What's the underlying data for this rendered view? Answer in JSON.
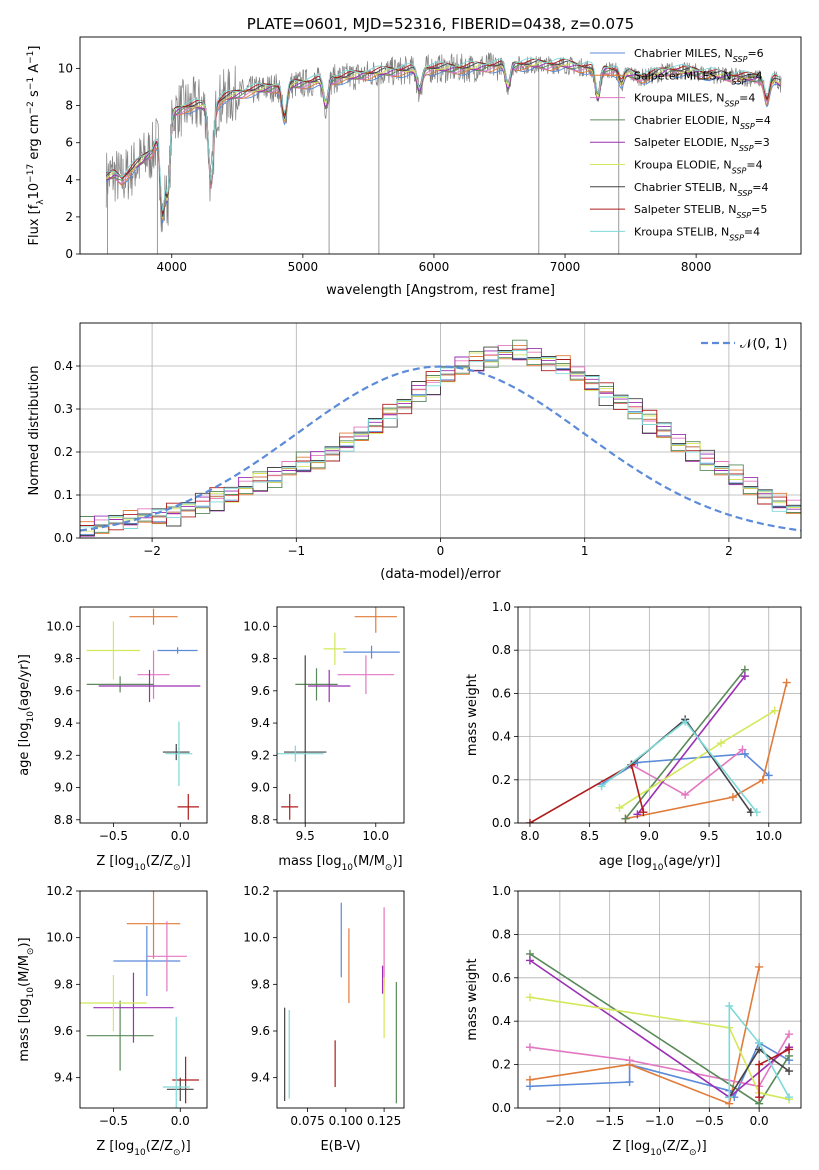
{
  "colors": {
    "chabrier_miles": "#5b8bd9",
    "salpeter_miles": "#e07b39",
    "kroupa_miles": "#e377c2",
    "chabrier_elodie": "#5a8a5a",
    "salpeter_elodie": "#9b30b5",
    "kroupa_elodie": "#d4e85a",
    "chabrier_stelib": "#444444",
    "salpeter_stelib": "#b01c1c",
    "kroupa_stelib": "#7fd8d8",
    "data": "#808080",
    "normal": "#5b8bd9"
  },
  "chart_data": [
    {
      "id": "spectrum",
      "type": "line",
      "title": "PLATE=0601, MJD=52316, FIBERID=0438, z=0.075",
      "xlabel": "wavelength [Angstrom, rest frame]",
      "ylabel": "Flux [f_λ10^-17 erg cm^-2 s^-1 A^-1]",
      "xlim": [
        3300,
        8800
      ],
      "ylim": [
        0,
        11.7
      ],
      "xticks": [
        4000,
        5000,
        6000,
        7000,
        8000
      ],
      "yticks": [
        0,
        2,
        4,
        6,
        8,
        10
      ],
      "legend_position": "right",
      "legend": [
        {
          "key": "chabrier_miles",
          "label": "Chabrier MILES, N",
          "sub": "SSP",
          "val": "=6"
        },
        {
          "key": "salpeter_miles",
          "label": "Salpeter MILES, N",
          "sub": "SSP",
          "val": "=4"
        },
        {
          "key": "kroupa_miles",
          "label": "Kroupa MILES, N",
          "sub": "SSP",
          "val": "=4"
        },
        {
          "key": "chabrier_elodie",
          "label": "Chabrier ELODIE, N",
          "sub": "SSP",
          "val": "=4"
        },
        {
          "key": "salpeter_elodie",
          "label": "Salpeter ELODIE, N",
          "sub": "SSP",
          "val": "=3"
        },
        {
          "key": "kroupa_elodie",
          "label": "Kroupa ELODIE, N",
          "sub": "SSP",
          "val": "=4"
        },
        {
          "key": "chabrier_stelib",
          "label": "Chabrier STELIB, N",
          "sub": "SSP",
          "val": "=4"
        },
        {
          "key": "salpeter_stelib",
          "label": "Salpeter STELIB, N",
          "sub": "SSP",
          "val": "=5"
        },
        {
          "key": "kroupa_stelib",
          "label": "Kroupa STELIB, N",
          "sub": "SSP",
          "val": "=4"
        }
      ],
      "continuum": {
        "x": [
          3500,
          3560,
          3620,
          3700,
          3800,
          3850,
          3900,
          3950,
          4000,
          4100,
          4200,
          4300,
          4400,
          4600,
          4800,
          5000,
          5200,
          5400,
          5600,
          5800,
          6000,
          6200,
          6400,
          6600,
          6800,
          7000,
          7200,
          7400,
          7600,
          7800,
          8000,
          8200,
          8400,
          8600,
          8700
        ],
        "y": [
          4.1,
          4.3,
          4.0,
          4.6,
          5.2,
          5.5,
          6.4,
          5.2,
          7.6,
          7.9,
          8.0,
          7.9,
          8.4,
          8.8,
          9.0,
          9.2,
          9.4,
          9.6,
          9.8,
          9.9,
          10.0,
          10.0,
          10.1,
          10.2,
          10.2,
          10.2,
          10.0,
          9.9,
          9.5,
          9.9,
          9.8,
          9.6,
          9.5,
          9.4,
          8.9
        ]
      },
      "dips": [
        {
          "x": 3930,
          "y": 2.0
        },
        {
          "x": 3970,
          "y": 3.0
        },
        {
          "x": 4300,
          "y": 3.8
        },
        {
          "x": 4860,
          "y": 7.3
        },
        {
          "x": 5175,
          "y": 8.0
        },
        {
          "x": 5890,
          "y": 8.8
        },
        {
          "x": 6565,
          "y": 9.0
        },
        {
          "x": 7250,
          "y": 8.4
        },
        {
          "x": 7430,
          "y": 9.2
        },
        {
          "x": 8540,
          "y": 8.3
        }
      ],
      "spikes_down": [
        {
          "x": 3510,
          "y": 0
        },
        {
          "x": 3890,
          "y": 0
        },
        {
          "x": 5200,
          "y": 0
        },
        {
          "x": 5580,
          "y": 0
        },
        {
          "x": 6800,
          "y": 0
        },
        {
          "x": 7410,
          "y": 0
        }
      ]
    },
    {
      "id": "residuals",
      "type": "bar",
      "xlabel": "(data-model)/error",
      "ylabel": "Normed distribution",
      "xlim": [
        -2.5,
        2.5
      ],
      "ylim": [
        0,
        0.5
      ],
      "xticks": [
        -2,
        -1,
        0,
        1,
        2
      ],
      "yticks": [
        0.0,
        0.1,
        0.2,
        0.3,
        0.4
      ],
      "grid": true,
      "legend_position": "upper right",
      "legend_label": "𝒩(0, 1)",
      "bin_width": 0.1,
      "bins_start": -2.5,
      "values": [
        0.02,
        0.03,
        0.04,
        0.04,
        0.05,
        0.05,
        0.06,
        0.07,
        0.08,
        0.09,
        0.1,
        0.12,
        0.13,
        0.14,
        0.16,
        0.17,
        0.18,
        0.2,
        0.22,
        0.24,
        0.26,
        0.29,
        0.31,
        0.34,
        0.36,
        0.38,
        0.4,
        0.41,
        0.42,
        0.43,
        0.43,
        0.42,
        0.41,
        0.4,
        0.38,
        0.36,
        0.34,
        0.32,
        0.3,
        0.27,
        0.25,
        0.22,
        0.2,
        0.18,
        0.16,
        0.14,
        0.12,
        0.1,
        0.08,
        0.07
      ],
      "series_offsets": [
        0.0,
        0.012,
        -0.01,
        0.018,
        -0.015,
        0.008,
        -0.02,
        0.015,
        -0.006
      ],
      "normal": {
        "mu": 0,
        "sigma": 1
      }
    },
    {
      "id": "age_vs_z",
      "type": "scatter",
      "xlabel": "Z [log10(Z/Z☉)]",
      "ylabel": "age  [log10(age/yr)]",
      "xlim": [
        -0.75,
        0.2
      ],
      "ylim": [
        8.78,
        10.12
      ],
      "xticks": [
        -0.5,
        0.0
      ],
      "yticks": [
        8.8,
        9.0,
        9.2,
        9.4,
        9.6,
        9.8,
        10.0
      ],
      "points": [
        {
          "key": "chabrier_miles",
          "x": -0.02,
          "y": 9.85,
          "xerr": 0.15,
          "yerr": 0.02
        },
        {
          "key": "salpeter_miles",
          "x": -0.2,
          "y": 10.06,
          "xerr": 0.18,
          "yerr": 0.05
        },
        {
          "key": "kroupa_miles",
          "x": -0.2,
          "y": 9.7,
          "xerr": 0.12,
          "yerr": 0.15
        },
        {
          "key": "chabrier_elodie",
          "x": -0.45,
          "y": 9.64,
          "xerr": 0.25,
          "yerr": 0.05
        },
        {
          "key": "salpeter_elodie",
          "x": -0.23,
          "y": 9.63,
          "xerr": 0.38,
          "yerr": 0.1
        },
        {
          "key": "kroupa_elodie",
          "x": -0.5,
          "y": 9.85,
          "xerr": 0.2,
          "yerr": 0.18
        },
        {
          "key": "chabrier_stelib",
          "x": -0.03,
          "y": 9.22,
          "xerr": 0.1,
          "yerr": 0.05
        },
        {
          "key": "salpeter_stelib",
          "x": 0.06,
          "y": 8.88,
          "xerr": 0.08,
          "yerr": 0.08
        },
        {
          "key": "kroupa_stelib",
          "x": -0.01,
          "y": 9.21,
          "xerr": 0.1,
          "yerr": 0.2
        }
      ]
    },
    {
      "id": "age_vs_mass",
      "type": "scatter",
      "xlabel": "mass [log10(M/M☉)]",
      "ylabel": "",
      "xlim": [
        9.3,
        10.2
      ],
      "ylim": [
        8.78,
        10.12
      ],
      "xticks": [
        9.5,
        10.0
      ],
      "yticks": [
        8.8,
        9.0,
        9.2,
        9.4,
        9.6,
        9.8,
        10.0
      ],
      "points": [
        {
          "key": "chabrier_miles",
          "x": 9.97,
          "y": 9.84,
          "xerr": 0.2,
          "yerr": 0.04
        },
        {
          "key": "salpeter_miles",
          "x": 10.0,
          "y": 10.06,
          "xerr": 0.15,
          "yerr": 0.1
        },
        {
          "key": "kroupa_miles",
          "x": 9.93,
          "y": 9.7,
          "xerr": 0.2,
          "yerr": 0.12
        },
        {
          "key": "chabrier_elodie",
          "x": 9.58,
          "y": 9.64,
          "xerr": 0.15,
          "yerr": 0.1
        },
        {
          "key": "salpeter_elodie",
          "x": 9.67,
          "y": 9.63,
          "xerr": 0.15,
          "yerr": 0.1
        },
        {
          "key": "kroupa_elodie",
          "x": 9.71,
          "y": 9.86,
          "xerr": 0.08,
          "yerr": 0.1
        },
        {
          "key": "chabrier_stelib",
          "x": 9.5,
          "y": 9.22,
          "xerr": 0.15,
          "yerr": 0.6
        },
        {
          "key": "salpeter_stelib",
          "x": 9.39,
          "y": 8.88,
          "xerr": 0.06,
          "yerr": 0.08
        },
        {
          "key": "kroupa_stelib",
          "x": 9.43,
          "y": 9.21,
          "xerr": 0.2,
          "yerr": 0.05
        }
      ]
    },
    {
      "id": "weight_vs_age",
      "type": "line",
      "xlabel": "age  [log10(age/yr)]",
      "ylabel": "mass weight",
      "xlim": [
        7.9,
        10.27
      ],
      "ylim": [
        0,
        1
      ],
      "xticks": [
        8.0,
        8.5,
        9.0,
        9.5,
        10.0
      ],
      "yticks": [
        0.0,
        0.2,
        0.4,
        0.6,
        0.8,
        1.0
      ],
      "grid": true,
      "series": [
        {
          "key": "chabrier_miles",
          "x": [
            8.6,
            8.9,
            9.8,
            10.0
          ],
          "y": [
            0.18,
            0.28,
            0.32,
            0.22
          ]
        },
        {
          "key": "salpeter_miles",
          "x": [
            8.8,
            9.7,
            9.95,
            10.15
          ],
          "y": [
            0.02,
            0.12,
            0.2,
            0.65
          ]
        },
        {
          "key": "kroupa_miles",
          "x": [
            8.85,
            9.3,
            9.78
          ],
          "y": [
            0.27,
            0.13,
            0.34
          ]
        },
        {
          "key": "chabrier_elodie",
          "x": [
            8.8,
            9.8
          ],
          "y": [
            0.02,
            0.71
          ]
        },
        {
          "key": "salpeter_elodie",
          "x": [
            8.9,
            9.8
          ],
          "y": [
            0.04,
            0.68
          ]
        },
        {
          "key": "kroupa_elodie",
          "x": [
            8.75,
            9.6,
            10.05
          ],
          "y": [
            0.07,
            0.37,
            0.52
          ]
        },
        {
          "key": "chabrier_stelib",
          "x": [
            8.85,
            9.3,
            9.85
          ],
          "y": [
            0.27,
            0.48,
            0.05
          ]
        },
        {
          "key": "salpeter_stelib",
          "x": [
            8.0,
            8.85,
            8.95
          ],
          "y": [
            0.0,
            0.27,
            0.05
          ]
        },
        {
          "key": "kroupa_stelib",
          "x": [
            8.6,
            9.3,
            9.9
          ],
          "y": [
            0.17,
            0.47,
            0.05
          ]
        }
      ]
    },
    {
      "id": "mass_vs_z",
      "type": "scatter",
      "xlabel": "Z [log10(Z/Z☉)]",
      "ylabel": "mass [log10(M/M☉)]",
      "xlim": [
        -0.75,
        0.2
      ],
      "ylim": [
        9.27,
        10.2
      ],
      "xticks": [
        -0.5,
        0.0
      ],
      "yticks": [
        9.4,
        9.6,
        9.8,
        10.0,
        10.2
      ],
      "points": [
        {
          "key": "chabrier_miles",
          "x": -0.25,
          "y": 9.9,
          "xerr": 0.25,
          "yerr": 0.15
        },
        {
          "key": "salpeter_miles",
          "x": -0.2,
          "y": 10.06,
          "xerr": 0.2,
          "yerr": 0.15
        },
        {
          "key": "kroupa_miles",
          "x": -0.1,
          "y": 9.92,
          "xerr": 0.15,
          "yerr": 0.15
        },
        {
          "key": "chabrier_elodie",
          "x": -0.45,
          "y": 9.58,
          "xerr": 0.25,
          "yerr": 0.15
        },
        {
          "key": "salpeter_elodie",
          "x": -0.35,
          "y": 9.7,
          "xerr": 0.3,
          "yerr": 0.15
        },
        {
          "key": "kroupa_elodie",
          "x": -0.5,
          "y": 9.72,
          "xerr": 0.25,
          "yerr": 0.12
        },
        {
          "key": "chabrier_stelib",
          "x": 0.0,
          "y": 9.35,
          "xerr": 0.1,
          "yerr": 0.05
        },
        {
          "key": "salpeter_stelib",
          "x": 0.04,
          "y": 9.39,
          "xerr": 0.1,
          "yerr": 0.1
        },
        {
          "key": "kroupa_stelib",
          "x": -0.03,
          "y": 9.36,
          "xerr": 0.1,
          "yerr": 0.3
        }
      ]
    },
    {
      "id": "mass_vs_ebv",
      "type": "scatter",
      "xlabel": "E(B-V)",
      "ylabel": "",
      "xlim": [
        0.055,
        0.138
      ],
      "ylim": [
        9.27,
        10.2
      ],
      "xticks": [
        0.075,
        0.1,
        0.125
      ],
      "xtick_labels": [
        "0.075",
        "0.100",
        "0.125"
      ],
      "yticks": [
        9.4,
        9.6,
        9.8,
        10.0,
        10.2
      ],
      "points": [
        {
          "key": "chabrier_miles",
          "x": 0.097,
          "y": 9.99,
          "xerr": 0,
          "yerr": 0.16
        },
        {
          "key": "salpeter_miles",
          "x": 0.102,
          "y": 9.88,
          "xerr": 0,
          "yerr": 0.16
        },
        {
          "key": "kroupa_miles",
          "x": 0.125,
          "y": 9.96,
          "xerr": 0,
          "yerr": 0.17
        },
        {
          "key": "chabrier_elodie",
          "x": 0.133,
          "y": 9.55,
          "xerr": 0,
          "yerr": 0.26
        },
        {
          "key": "salpeter_elodie",
          "x": 0.124,
          "y": 9.82,
          "xerr": 0,
          "yerr": 0.06
        },
        {
          "key": "kroupa_elodie",
          "x": 0.125,
          "y": 9.7,
          "xerr": 0,
          "yerr": 0.13
        },
        {
          "key": "chabrier_stelib",
          "x": 0.06,
          "y": 9.5,
          "xerr": 0,
          "yerr": 0.2
        },
        {
          "key": "salpeter_stelib",
          "x": 0.093,
          "y": 9.46,
          "xerr": 0,
          "yerr": 0.1
        },
        {
          "key": "kroupa_stelib",
          "x": 0.063,
          "y": 9.5,
          "xerr": 0,
          "yerr": 0.19
        }
      ]
    },
    {
      "id": "weight_vs_z",
      "type": "line",
      "xlabel": "Z [log10(Z/Z☉)]",
      "ylabel": "mass weight",
      "xlim": [
        -2.42,
        0.42
      ],
      "ylim": [
        0,
        1
      ],
      "xticks": [
        -2.0,
        -1.5,
        -1.0,
        -0.5,
        0.0
      ],
      "yticks": [
        0.0,
        0.2,
        0.4,
        0.6,
        0.8,
        1.0
      ],
      "grid": true,
      "series": [
        {
          "key": "chabrier_miles",
          "x": [
            -2.3,
            -1.3,
            -1.3,
            -0.3,
            -0.25,
            0.0,
            0.3
          ],
          "y": [
            0.1,
            0.12,
            0.2,
            0.08,
            0.05,
            0.3,
            0.22
          ]
        },
        {
          "key": "salpeter_miles",
          "x": [
            -2.3,
            -1.3,
            -0.3,
            0.0
          ],
          "y": [
            0.13,
            0.2,
            0.02,
            0.65
          ]
        },
        {
          "key": "kroupa_miles",
          "x": [
            -2.3,
            -1.3,
            0.0,
            0.3
          ],
          "y": [
            0.28,
            0.22,
            0.1,
            0.34
          ]
        },
        {
          "key": "chabrier_elodie",
          "x": [
            -2.3,
            0.0,
            0.3
          ],
          "y": [
            0.71,
            0.02,
            0.24
          ]
        },
        {
          "key": "salpeter_elodie",
          "x": [
            -2.3,
            -0.3,
            0.3
          ],
          "y": [
            0.68,
            0.05,
            0.28
          ]
        },
        {
          "key": "kroupa_elodie",
          "x": [
            -2.3,
            -0.3,
            0.0,
            0.3
          ],
          "y": [
            0.51,
            0.37,
            0.07,
            0.04
          ]
        },
        {
          "key": "chabrier_stelib",
          "x": [
            -0.3,
            0.0,
            0.3
          ],
          "y": [
            0.05,
            0.27,
            0.17
          ]
        },
        {
          "key": "salpeter_stelib",
          "x": [
            0.0,
            0.0,
            0.3
          ],
          "y": [
            0.05,
            0.2,
            0.27
          ]
        },
        {
          "key": "kroupa_stelib",
          "x": [
            -0.3,
            -0.3,
            0.0,
            0.3
          ],
          "y": [
            0.05,
            0.47,
            0.3,
            0.05
          ]
        }
      ]
    }
  ]
}
